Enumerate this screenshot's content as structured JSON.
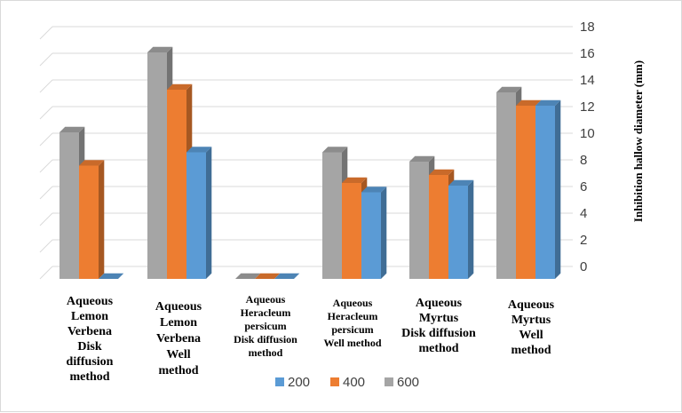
{
  "chart_data": {
    "type": "bar",
    "style": "3d-clustered-column",
    "ylabel": "Inhibition hallow diameter (mm)",
    "ylim": [
      0,
      18
    ],
    "yticks": [
      0,
      2,
      4,
      6,
      8,
      10,
      12,
      14,
      16,
      18
    ],
    "grid": true,
    "legend_position": "bottom",
    "categories": [
      "Aqueous Lemon Verbena Disk diffusion method",
      "Aqueous Lemon Verbena Well method",
      "Aqueous Heracleum persicum Disk diffusion method",
      "Aqueous Heracleum persicum Well method",
      "Aqueous Myrtus Disk diffusion method",
      "Aqueous Myrtus Well method"
    ],
    "category_lines": [
      [
        "Aqueous",
        "Lemon",
        "Verbena",
        "Disk",
        "diffusion",
        "method"
      ],
      [
        "Aqueous",
        "Lemon",
        "Verbena",
        "Well",
        "method"
      ],
      [
        "Aqueous",
        "Heracleum",
        "persicum",
        "Disk diffusion",
        "method"
      ],
      [
        "Aqueous",
        "Heracleum",
        "persicum",
        "Well method"
      ],
      [
        "Aqueous",
        "Myrtus",
        "Disk diffusion",
        "method"
      ],
      [
        "Aqueous",
        "Myrtus",
        "Well",
        "method"
      ]
    ],
    "series": [
      {
        "name": "600",
        "color": "#a5a5a5",
        "values": [
          11,
          17,
          0,
          9.5,
          8.8,
          14
        ]
      },
      {
        "name": "400",
        "color": "#ed7d31",
        "values": [
          8.5,
          14.2,
          0,
          7.2,
          7.8,
          13
        ]
      },
      {
        "name": "200",
        "color": "#5b9bd5",
        "values": [
          0,
          9.5,
          0,
          6.5,
          7,
          13
        ]
      }
    ],
    "legend_order": [
      "200",
      "400",
      "600"
    ]
  }
}
